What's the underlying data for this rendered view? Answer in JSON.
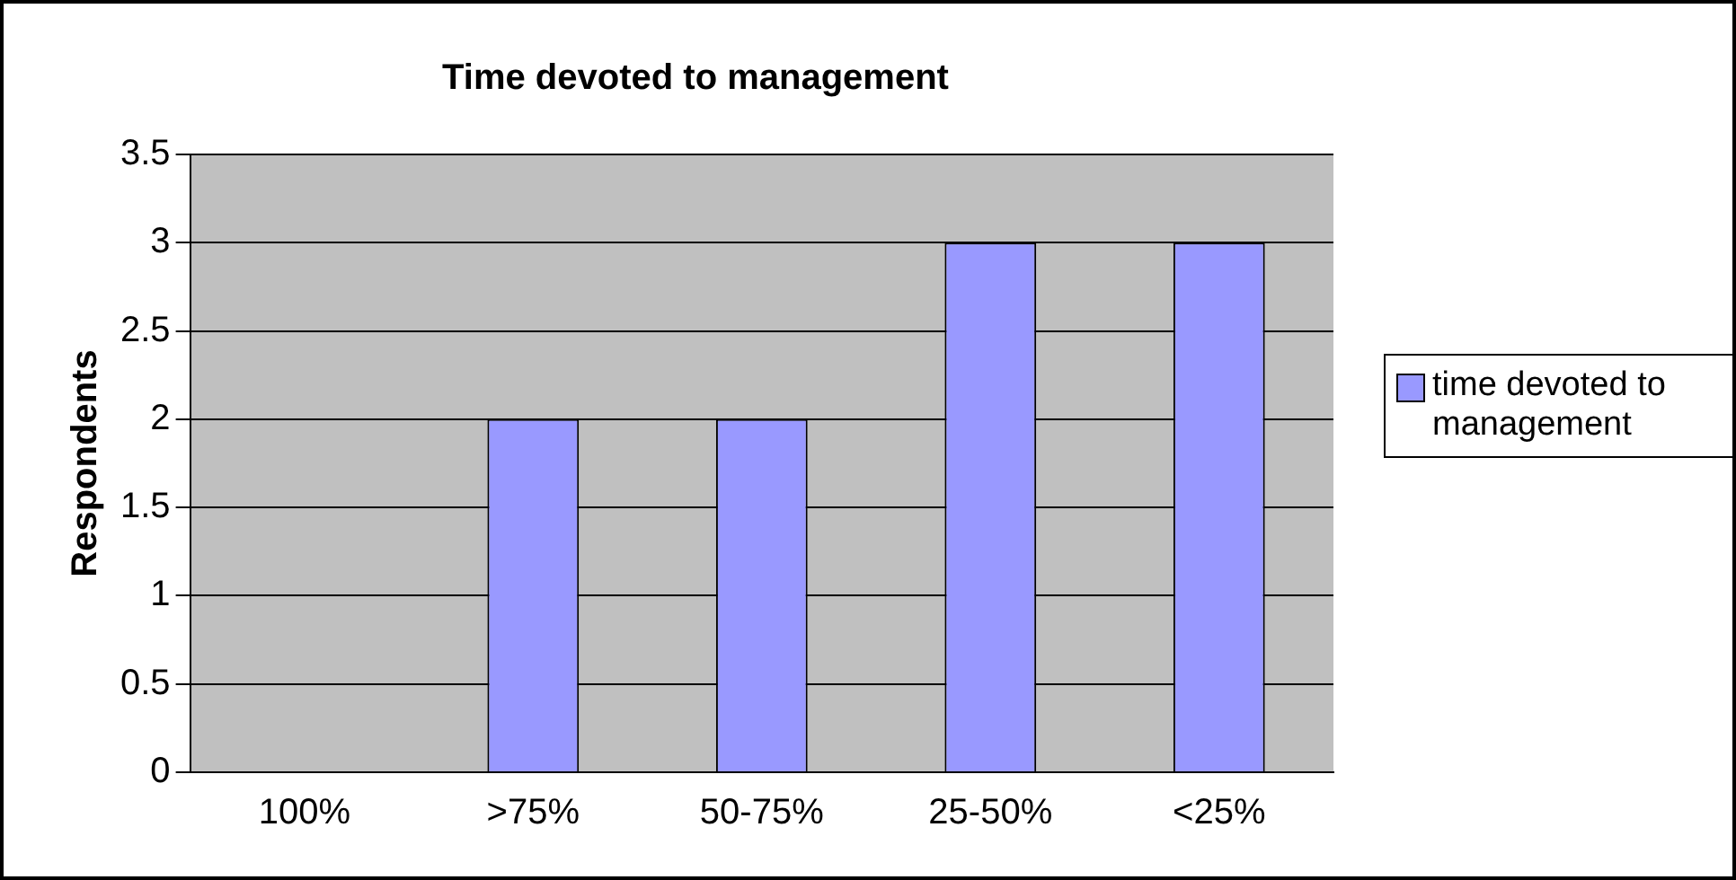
{
  "chart_data": {
    "type": "bar",
    "title": "Time devoted to management",
    "ylabel": "Respondents",
    "categories": [
      "100%",
      ">75%",
      "50-75%",
      "25-50%",
      "<25%"
    ],
    "series": [
      {
        "name": "time devoted to management",
        "color": "#9999ff",
        "values": [
          0,
          2,
          2,
          3,
          3
        ]
      }
    ],
    "ylim": [
      0,
      3.5
    ],
    "yticks": [
      0,
      0.5,
      1,
      1.5,
      2,
      2.5,
      3,
      3.5
    ],
    "grid": "y",
    "legend": "right"
  }
}
